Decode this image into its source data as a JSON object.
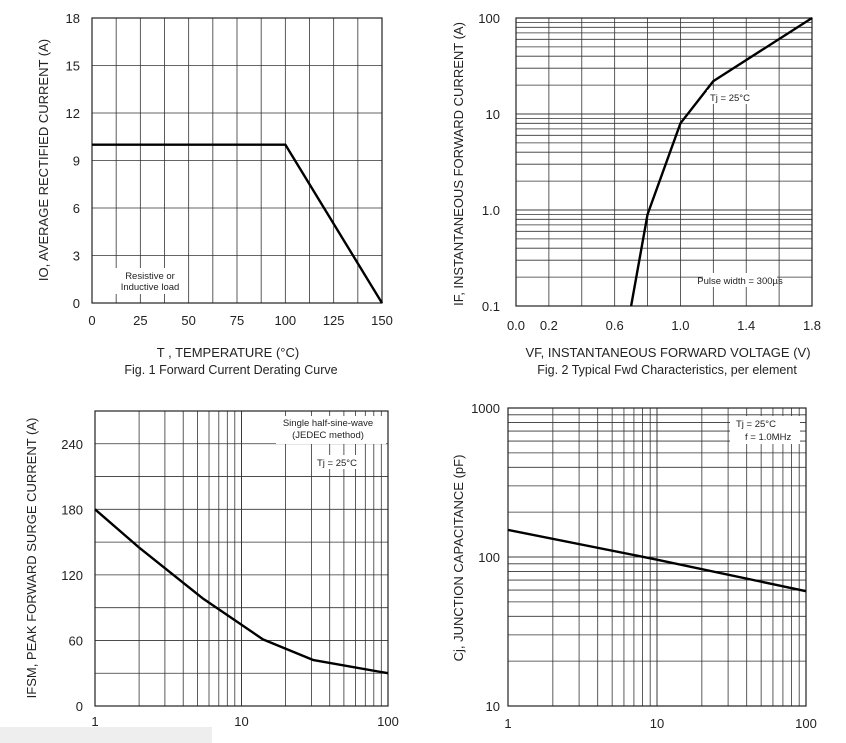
{
  "charts": [
    {
      "type": "line",
      "caption": "Fig. 1  Forward Current Derating Curve",
      "xlabel": "T  , TEMPERATURE (°C)",
      "ylabel": "IO, AVERAGE RECTIFIED CURRENT (A)",
      "xlim": [
        0,
        150
      ],
      "ylim": [
        0,
        18
      ],
      "xticks": [
        "0",
        "25",
        "50",
        "75",
        "100",
        "125",
        "150"
      ],
      "yticks": [
        "0",
        "3",
        "6",
        "9",
        "12",
        "15",
        "18"
      ],
      "annotations": [
        "Resistive or",
        "Inductive load"
      ],
      "series": [
        {
          "x": [
            0,
            100,
            150
          ],
          "y": [
            10,
            10,
            0
          ]
        }
      ]
    },
    {
      "type": "line",
      "caption": "Fig. 2  Typical Fwd Characteristics, per element",
      "xlabel": "VF, INSTANTANEOUS FORWARD VOLTAGE (V)",
      "ylabel": "IF, INSTANTANEOUS FORWARD CURRENT (A)",
      "xlim": [
        0,
        1.8
      ],
      "ylim": [
        0.1,
        100
      ],
      "yscale": "log",
      "xticks": [
        "0.0",
        "0.2",
        "0.6",
        "1.0",
        "1.4",
        "1.8"
      ],
      "yticks": [
        "0.1",
        "1.0",
        "10",
        "100"
      ],
      "annotations": [
        "Tj = 25°C",
        "Pulse width = 300µs"
      ],
      "series": [
        {
          "x": [
            0.7,
            0.8,
            1.0,
            1.2,
            1.8
          ],
          "y": [
            0.1,
            0.9,
            8,
            22,
            100
          ]
        }
      ]
    },
    {
      "type": "line",
      "caption": "",
      "xlabel": "",
      "ylabel": "IFSM, PEAK FORWARD SURGE CURRENT (A)",
      "xscale": "log",
      "xlim": [
        1,
        100
      ],
      "ylim": [
        0,
        270
      ],
      "xticks": [
        "1",
        "10",
        "100"
      ],
      "yticks": [
        "0",
        "60",
        "120",
        "180",
        "240"
      ],
      "annotations": [
        "Single half-sine-wave",
        "(JEDEC method)",
        "Tj = 25°C"
      ],
      "series": [
        {
          "x": [
            1,
            2,
            5.5,
            14,
            31,
            100
          ],
          "y": [
            180,
            145,
            98,
            61,
            42,
            30
          ]
        }
      ]
    },
    {
      "type": "line",
      "caption": "",
      "xlabel": "",
      "ylabel": "Cj, JUNCTION CAPACITANCE (pF)",
      "xscale": "log",
      "yscale": "log",
      "xlim": [
        1,
        100
      ],
      "ylim": [
        10,
        1000
      ],
      "xticks": [
        "1",
        "10",
        "100"
      ],
      "yticks": [
        "10",
        "100",
        "1000"
      ],
      "annotations": [
        "Tj = 25°C",
        "f = 1.0MHz"
      ],
      "series": [
        {
          "x": [
            1,
            10,
            100
          ],
          "y": [
            152,
            96,
            59
          ]
        }
      ]
    }
  ]
}
